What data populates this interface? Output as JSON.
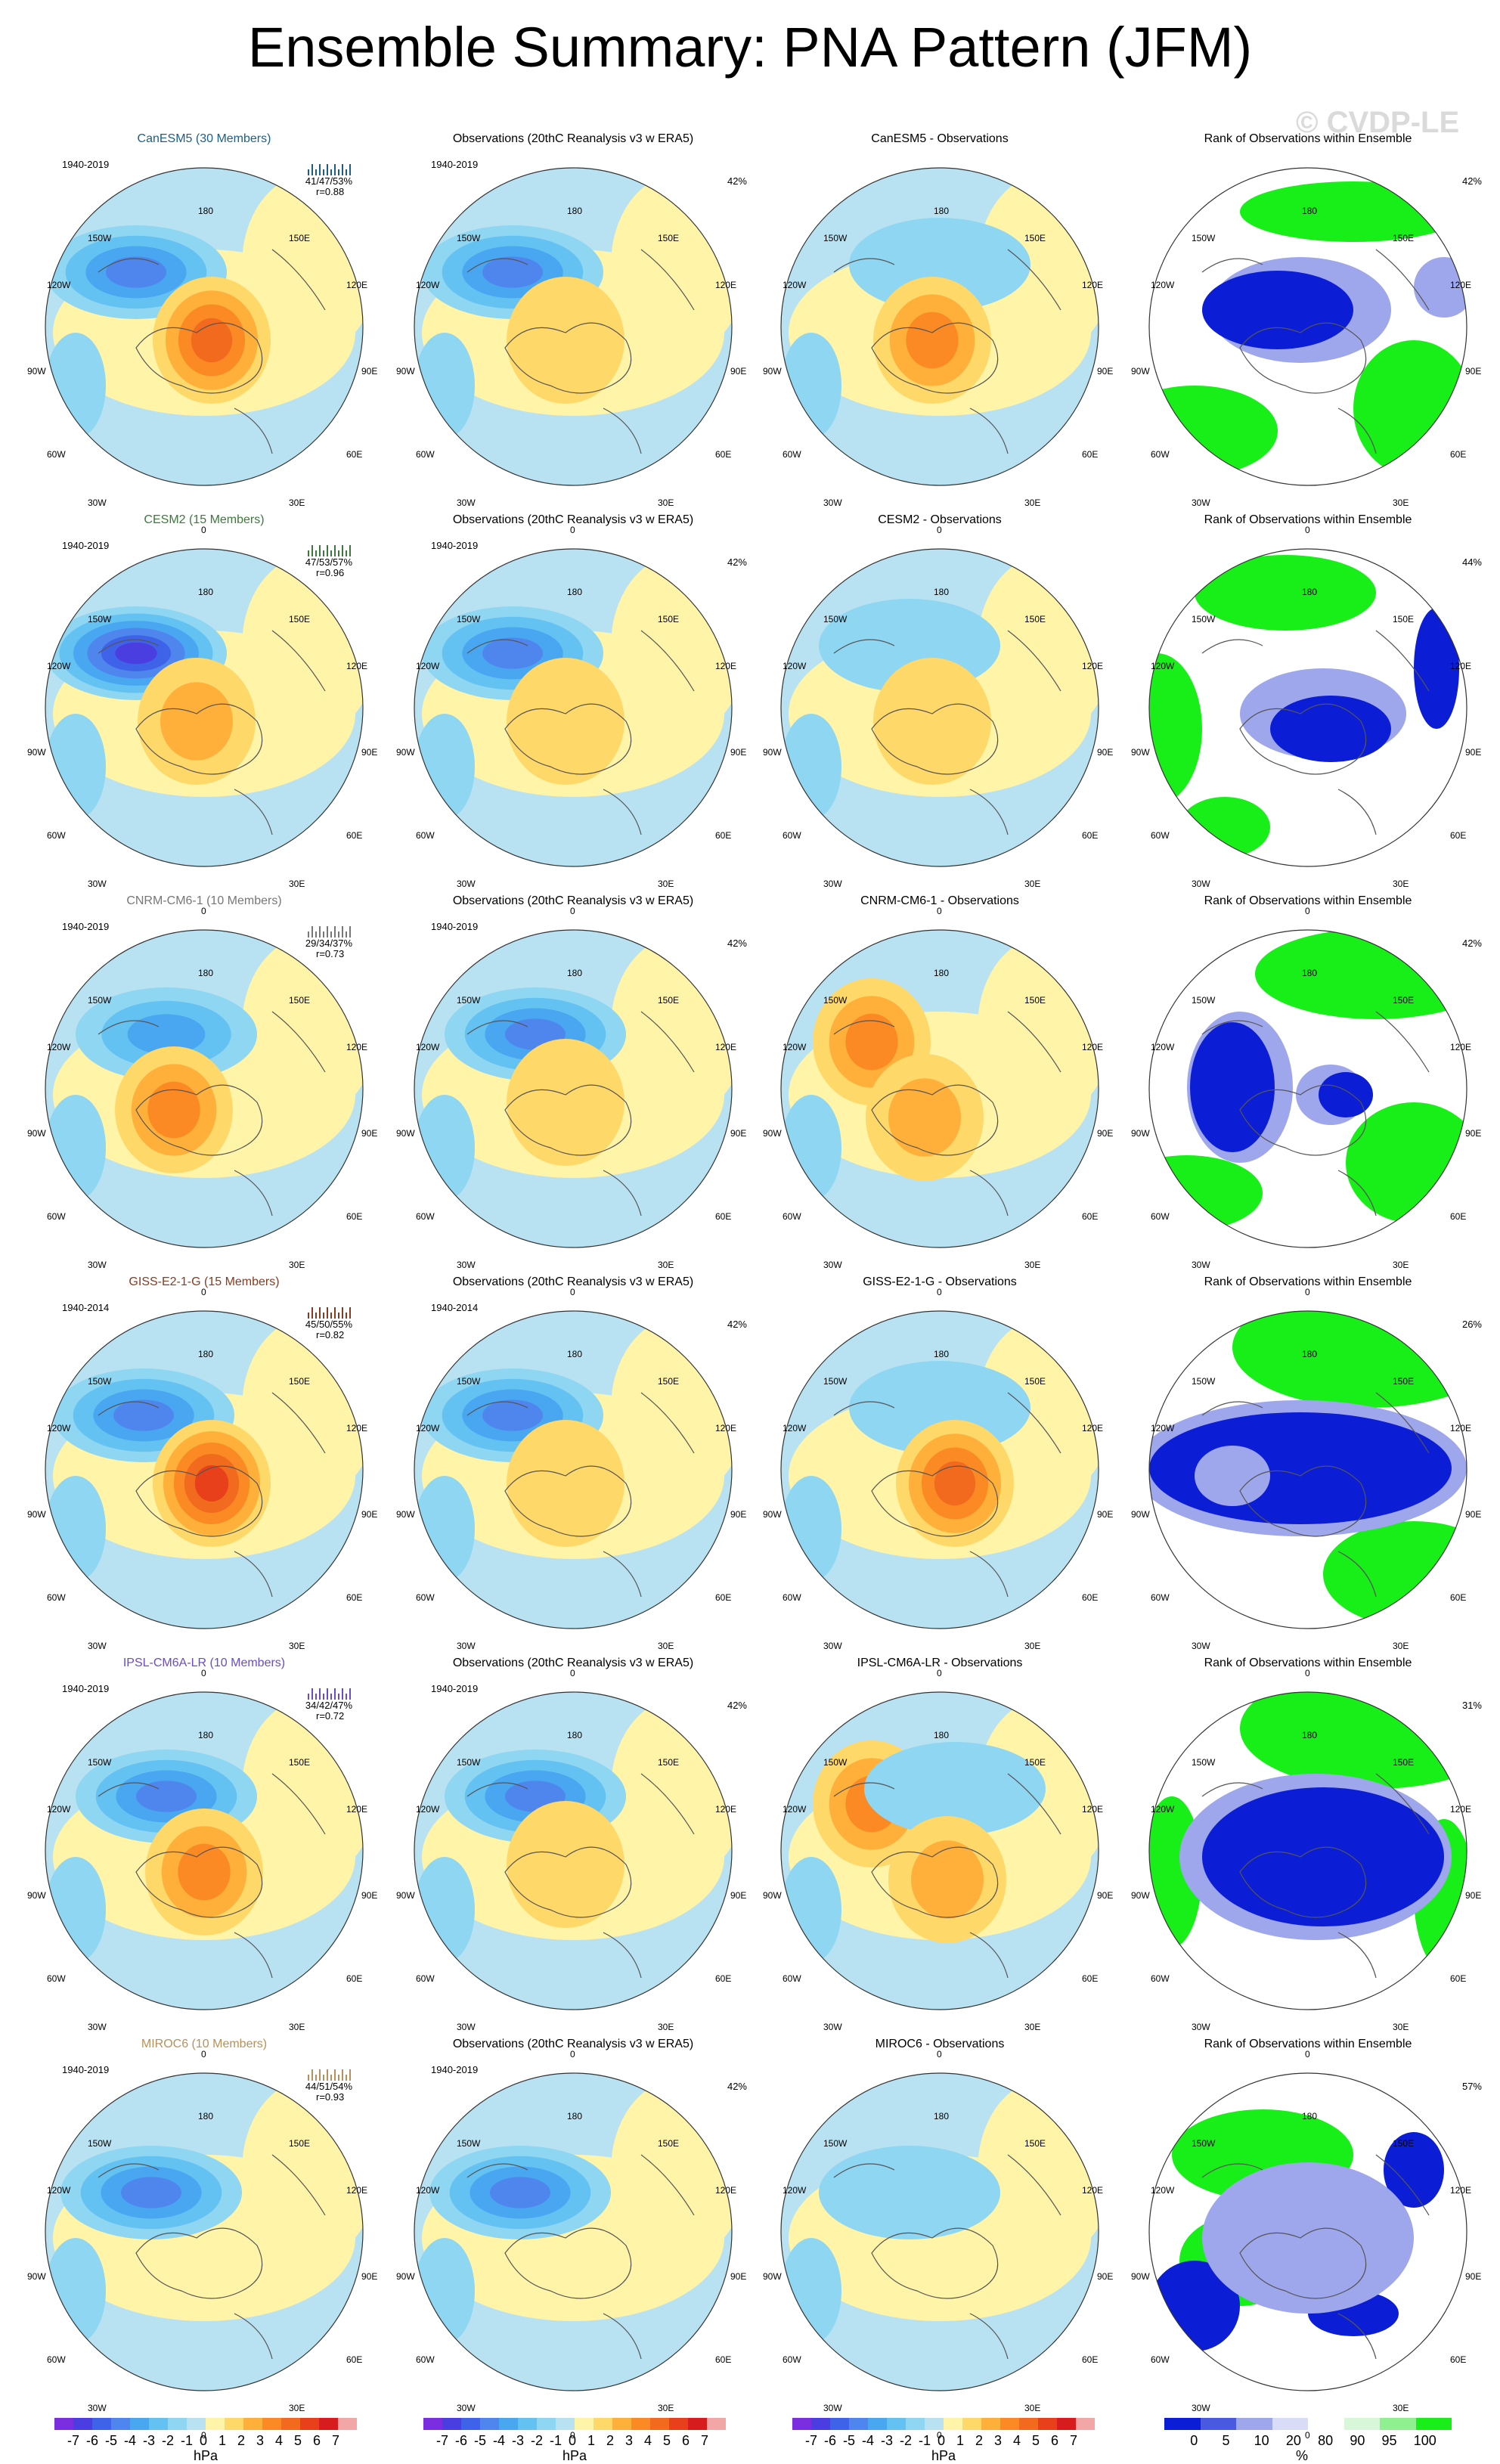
{
  "title": "Ensemble Summary: PNA Pattern (JFM)",
  "watermark": "© CVDP-LE",
  "column_titles": {
    "obs": "Observations (20thC Reanalysis v3 w ERA5)",
    "rank": "Rank of Observations within Ensemble"
  },
  "map_labels": {
    "top": "180",
    "bottom": "0",
    "upper_left": "150W",
    "upper_right": "150E",
    "mid_upper_left": "120W",
    "mid_upper_right": "120E",
    "left": "90W",
    "right": "90E",
    "mid_lower_left": "60W",
    "mid_lower_right": "60E",
    "lower_left": "30W",
    "lower_right": "30E"
  },
  "rows": [
    {
      "model": "CanESM5 (30 Members)",
      "model_color": "#1a5f8c",
      "period": "1940-2019",
      "stats": "41/47/53%",
      "r": "r=0.88",
      "obs_period": "1940-2019",
      "obs_pct": "42%",
      "diff_title": "CanESM5 - Observations",
      "rank_pct": "42%"
    },
    {
      "model": "CESM2 (15 Members)",
      "model_color": "#3c7a3c",
      "period": "1940-2019",
      "stats": "47/53/57%",
      "r": "r=0.96",
      "obs_period": "1940-2019",
      "obs_pct": "42%",
      "diff_title": "CESM2 - Observations",
      "rank_pct": "44%"
    },
    {
      "model": "CNRM-CM6-1 (10 Members)",
      "model_color": "#777777",
      "period": "1940-2019",
      "stats": "29/34/37%",
      "r": "r=0.73",
      "obs_period": "1940-2019",
      "obs_pct": "42%",
      "diff_title": "CNRM-CM6-1 - Observations",
      "rank_pct": "42%"
    },
    {
      "model": "GISS-E2-1-G (15 Members)",
      "model_color": "#8a3a1e",
      "period": "1940-2014",
      "stats": "45/50/55%",
      "r": "r=0.82",
      "obs_period": "1940-2014",
      "obs_pct": "42%",
      "diff_title": "GISS-E2-1-G - Observations",
      "rank_pct": "26%"
    },
    {
      "model": "IPSL-CM6A-LR (10 Members)",
      "model_color": "#6a4cc8",
      "period": "1940-2019",
      "stats": "34/42/47%",
      "r": "r=0.72",
      "obs_period": "1940-2019",
      "obs_pct": "42%",
      "diff_title": "IPSL-CM6A-LR - Observations",
      "rank_pct": "31%"
    },
    {
      "model": "MIROC6 (10 Members)",
      "model_color": "#b8905a",
      "period": "1940-2019",
      "stats": "44/51/54%",
      "r": "r=0.93",
      "obs_period": "1940-2019",
      "obs_pct": "42%",
      "diff_title": "MIROC6 - Observations",
      "rank_pct": "57%"
    }
  ],
  "colorbar_hpa": {
    "labels": [
      "-7",
      "-6",
      "-5",
      "-4",
      "-3",
      "-2",
      "-1",
      "0",
      "1",
      "2",
      "3",
      "4",
      "5",
      "6",
      "7"
    ],
    "unit": "hPa",
    "colors": [
      "#7b2ee0",
      "#4b3ee0",
      "#3f63e8",
      "#4f86ee",
      "#49a6f0",
      "#64c2f2",
      "#8ed6f2",
      "#b8e2f2",
      "#fff4a8",
      "#ffd86a",
      "#ffb03a",
      "#fb8a24",
      "#f26a1e",
      "#e8401a",
      "#d61c1c",
      "#f2a6a6"
    ]
  },
  "colorbar_rank": {
    "labels": [
      "0",
      "5",
      "10",
      "20",
      "80",
      "90",
      "95",
      "100"
    ],
    "unit": "%",
    "colors": [
      "#0b1ed6",
      "#4a5ae0",
      "#9ea6ec",
      "#d8dcf6",
      "#ffffff",
      "#d8f6d8",
      "#8ef08e",
      "#18ee18"
    ]
  }
}
